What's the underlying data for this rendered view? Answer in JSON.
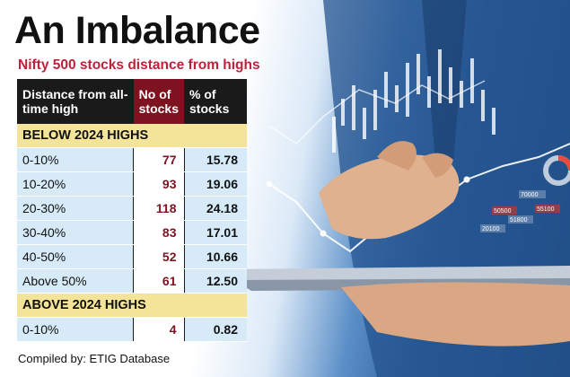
{
  "title": "An Imbalance",
  "subtitle": "Nifty 500 stocks distance from highs",
  "source": "Compiled by: ETIG Database",
  "colors": {
    "header_dark": "#1a1a1a",
    "header_accent": "#7d1221",
    "section_band": "#f3e49a",
    "row_fill": "#d6eaf8",
    "subtitle_red": "#c21f3a"
  },
  "chart_data": {
    "type": "table",
    "columns": [
      "Distance from all-time high",
      "No of stocks",
      "% of stocks"
    ],
    "sections": [
      {
        "label": "BELOW 2024 HIGHS",
        "rows": [
          {
            "range": "0-10%",
            "count": 77,
            "pct": "15.78"
          },
          {
            "range": "10-20%",
            "count": 93,
            "pct": "19.06"
          },
          {
            "range": "20-30%",
            "count": 118,
            "pct": "24.18"
          },
          {
            "range": "30-40%",
            "count": 83,
            "pct": "17.01"
          },
          {
            "range": "40-50%",
            "count": 52,
            "pct": "10.66"
          },
          {
            "range": "Above 50%",
            "count": 61,
            "pct": "12.50"
          }
        ]
      },
      {
        "label": "ABOVE 2024 HIGHS",
        "rows": [
          {
            "range": "0-10%",
            "count": 4,
            "pct": "0.82"
          }
        ]
      }
    ]
  },
  "background_photo": {
    "tag_values": [
      "70000",
      "50500",
      "51800",
      "20100",
      "55100"
    ]
  }
}
